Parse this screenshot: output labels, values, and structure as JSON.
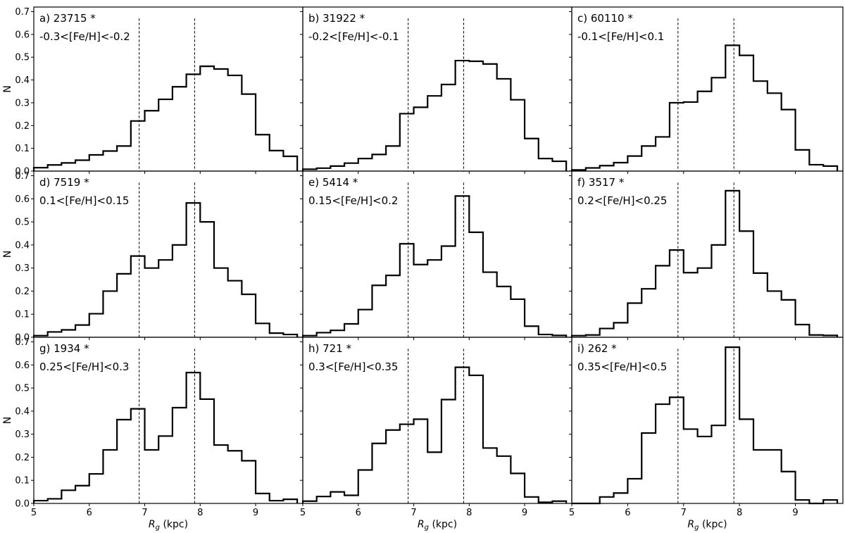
{
  "chart_data": {
    "type": "histogram-grid",
    "x_range": [
      5,
      9.85
    ],
    "y_range": [
      0,
      0.72
    ],
    "x_ticks": [
      5,
      6,
      7,
      8,
      9
    ],
    "y_ticks": [
      0.0,
      0.1,
      0.2,
      0.3,
      0.4,
      0.5,
      0.6,
      0.7
    ],
    "y_tick_labels": [
      "0.0",
      "0.1",
      "0.2",
      "0.3",
      "0.4",
      "0.5",
      "0.6",
      "0.7"
    ],
    "x_ticks_last_column": [
      5,
      6,
      7,
      8,
      9
    ],
    "xlabel_var": "R",
    "xlabel_sub": "g",
    "xlabel_units": " (kpc)",
    "ylabel": "N",
    "vlines": [
      6.9,
      7.9
    ],
    "bin_edges": [
      5.0,
      5.25,
      5.5,
      5.75,
      6.0,
      6.25,
      6.5,
      6.75,
      7.0,
      7.25,
      7.5,
      7.75,
      8.0,
      8.25,
      8.5,
      8.75,
      9.0,
      9.25,
      9.5,
      9.75
    ],
    "panels": [
      {
        "label": "a) 23715 *",
        "range": "-0.3<[Fe/H]<-0.2",
        "values": [
          0.015,
          0.027,
          0.036,
          0.048,
          0.071,
          0.088,
          0.11,
          0.22,
          0.265,
          0.315,
          0.37,
          0.425,
          0.46,
          0.448,
          0.42,
          0.338,
          0.16,
          0.09,
          0.065
        ]
      },
      {
        "label": "b) 31922 *",
        "range": "-0.2<[Fe/H]<-0.1",
        "values": [
          0.008,
          0.013,
          0.022,
          0.035,
          0.055,
          0.073,
          0.11,
          0.252,
          0.28,
          0.33,
          0.38,
          0.485,
          0.482,
          0.47,
          0.405,
          0.313,
          0.143,
          0.055,
          0.043
        ]
      },
      {
        "label": "c) 60110 *",
        "range": "-0.1<[Fe/H]<0.1",
        "values": [
          0.005,
          0.014,
          0.024,
          0.037,
          0.066,
          0.11,
          0.15,
          0.3,
          0.303,
          0.35,
          0.41,
          0.552,
          0.508,
          0.395,
          0.342,
          0.27,
          0.093,
          0.028,
          0.022
        ]
      },
      {
        "label": "d) 7519 *",
        "range": "0.1<[Fe/H]<0.15",
        "values": [
          0.007,
          0.023,
          0.032,
          0.053,
          0.102,
          0.2,
          0.275,
          0.352,
          0.3,
          0.335,
          0.4,
          0.582,
          0.5,
          0.3,
          0.245,
          0.186,
          0.06,
          0.018,
          0.012
        ]
      },
      {
        "label": "e) 5414 *",
        "range": "0.15<[Fe/H]<0.2",
        "values": [
          0.007,
          0.02,
          0.03,
          0.058,
          0.12,
          0.225,
          0.268,
          0.405,
          0.315,
          0.335,
          0.395,
          0.612,
          0.455,
          0.282,
          0.22,
          0.165,
          0.048,
          0.012,
          0.008
        ]
      },
      {
        "label": "f) 3517 *",
        "range": "0.2<[Fe/H]<0.25",
        "values": [
          0.007,
          0.01,
          0.038,
          0.063,
          0.148,
          0.21,
          0.31,
          0.378,
          0.28,
          0.3,
          0.4,
          0.635,
          0.46,
          0.278,
          0.2,
          0.162,
          0.055,
          0.01,
          0.008
        ]
      },
      {
        "label": "g) 1934 *",
        "range": "0.25<[Fe/H]<0.3",
        "values": [
          0.012,
          0.02,
          0.057,
          0.077,
          0.128,
          0.232,
          0.363,
          0.41,
          0.232,
          0.292,
          0.415,
          0.567,
          0.452,
          0.253,
          0.228,
          0.185,
          0.043,
          0.012,
          0.018
        ]
      },
      {
        "label": "h) 721 *",
        "range": "0.3<[Fe/H]<0.35",
        "values": [
          0.01,
          0.03,
          0.05,
          0.035,
          0.145,
          0.26,
          0.318,
          0.343,
          0.365,
          0.222,
          0.45,
          0.59,
          0.555,
          0.24,
          0.205,
          0.13,
          0.028,
          0.005,
          0.01
        ]
      },
      {
        "label": "i) 262 *",
        "range": "0.35<[Fe/H]<0.5",
        "values": [
          0.0,
          0.0,
          0.028,
          0.045,
          0.107,
          0.305,
          0.43,
          0.46,
          0.322,
          0.29,
          0.338,
          0.677,
          0.365,
          0.232,
          0.232,
          0.138,
          0.015,
          0.0,
          0.015
        ]
      }
    ]
  }
}
